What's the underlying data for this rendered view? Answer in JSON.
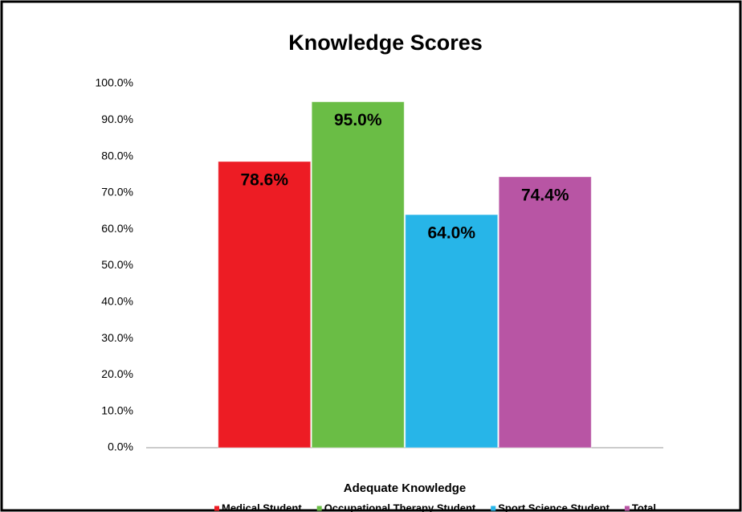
{
  "chart_data": {
    "type": "bar",
    "title": "Knowledge Scores",
    "categories": [
      "Adequate Knowledge"
    ],
    "series": [
      {
        "name": "Medical Student",
        "color": "#ed1c24",
        "values": [
          78.6
        ],
        "value_labels": [
          "78.6%"
        ]
      },
      {
        "name": "Occupational Therapy Student",
        "color": "#6abd45",
        "values": [
          95.0
        ],
        "value_labels": [
          "95.0%"
        ]
      },
      {
        "name": "Sport Science Student",
        "color": "#27b5e8",
        "values": [
          64.0
        ],
        "value_labels": [
          "64.0%"
        ]
      },
      {
        "name": "Total",
        "color": "#b855a4",
        "values": [
          74.4
        ],
        "value_labels": [
          "74.4%"
        ]
      }
    ],
    "ylim": [
      0,
      100
    ],
    "yticks": [
      {
        "value": 0,
        "label": "0.0%"
      },
      {
        "value": 10,
        "label": "10.0%"
      },
      {
        "value": 20,
        "label": "20.0%"
      },
      {
        "value": 30,
        "label": "30.0%"
      },
      {
        "value": 40,
        "label": "40.0%"
      },
      {
        "value": 50,
        "label": "50.0%"
      },
      {
        "value": 60,
        "label": "60.0%"
      },
      {
        "value": 70,
        "label": "70.0%"
      },
      {
        "value": 80,
        "label": "80.0%"
      },
      {
        "value": 90,
        "label": "90.0%"
      },
      {
        "value": 100,
        "label": "100.0%"
      }
    ],
    "grid": false,
    "legend": "bottom"
  }
}
